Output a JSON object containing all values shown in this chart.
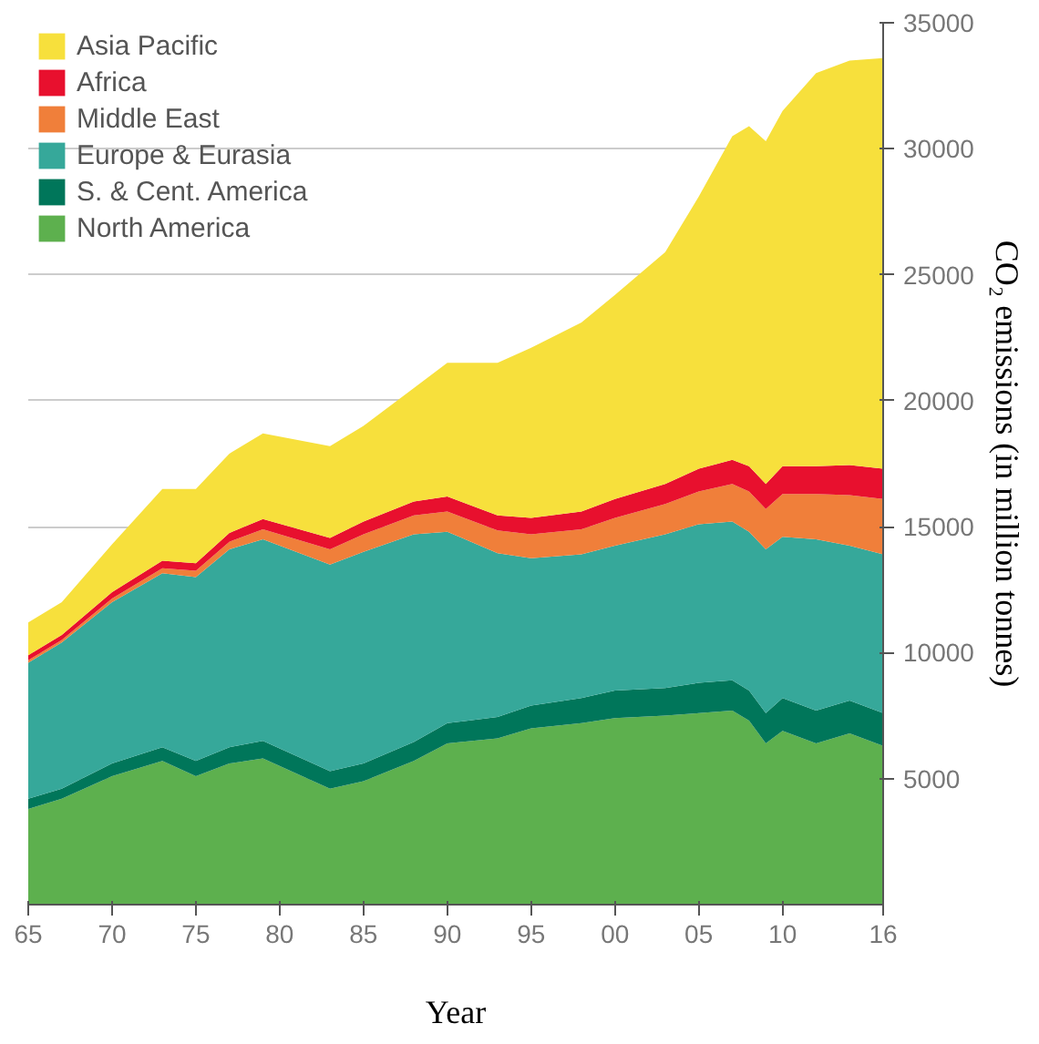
{
  "chart_data": {
    "type": "area",
    "stacked": true,
    "xlabel": "Year",
    "ylabel": "CO₂ emissions (in million tonnes)",
    "x": [
      1965,
      1967,
      1970,
      1973,
      1975,
      1977,
      1979,
      1983,
      1985,
      1988,
      1990,
      1993,
      1995,
      1998,
      2000,
      2003,
      2005,
      2007,
      2008,
      2009,
      2010,
      2012,
      2014,
      2016
    ],
    "series": [
      {
        "name": "North America",
        "color": "#5db04e",
        "values": [
          3800,
          4200,
          5100,
          5700,
          5100,
          5600,
          5800,
          4600,
          4900,
          5700,
          6400,
          6600,
          7000,
          7200,
          7400,
          7500,
          7600,
          7700,
          7300,
          6400,
          6900,
          6400,
          6800,
          6300
        ]
      },
      {
        "name": "S. & Cent. America",
        "color": "#00765a",
        "values": [
          400,
          400,
          500,
          550,
          600,
          650,
          700,
          700,
          700,
          750,
          800,
          850,
          900,
          1000,
          1100,
          1100,
          1200,
          1200,
          1200,
          1200,
          1300,
          1300,
          1300,
          1300
        ]
      },
      {
        "name": "Europe & Eurasia",
        "color": "#36a89a",
        "values": [
          5400,
          5800,
          6400,
          6900,
          7300,
          7850,
          8000,
          8200,
          8400,
          8250,
          7600,
          6500,
          5850,
          5700,
          5750,
          6100,
          6300,
          6300,
          6300,
          6500,
          6400,
          6800,
          6150,
          6300
        ]
      },
      {
        "name": "Middle East",
        "color": "#f07f3a",
        "values": [
          100,
          100,
          150,
          200,
          250,
          300,
          400,
          600,
          700,
          750,
          800,
          900,
          950,
          1000,
          1100,
          1200,
          1300,
          1500,
          1600,
          1600,
          1700,
          1800,
          2000,
          2200
        ]
      },
      {
        "name": "Africa",
        "color": "#e8102e",
        "values": [
          200,
          200,
          250,
          300,
          300,
          350,
          400,
          450,
          500,
          550,
          600,
          600,
          650,
          700,
          750,
          800,
          900,
          950,
          1000,
          1000,
          1100,
          1100,
          1200,
          1200
        ]
      },
      {
        "name": "Asia Pacific",
        "color": "#f7e03c",
        "values": [
          1300,
          1300,
          1900,
          2850,
          2950,
          3150,
          3400,
          3650,
          3800,
          4500,
          5300,
          6050,
          6750,
          7500,
          8100,
          9200,
          10800,
          12850,
          13500,
          13600,
          14100,
          15600,
          16050,
          16300
        ]
      }
    ],
    "xlim": [
      1965,
      2016
    ],
    "xticks": [
      {
        "value": 1965,
        "label": "65"
      },
      {
        "value": 1970,
        "label": "70"
      },
      {
        "value": 1975,
        "label": "75"
      },
      {
        "value": 1980,
        "label": "80"
      },
      {
        "value": 1985,
        "label": "85"
      },
      {
        "value": 1990,
        "label": "90"
      },
      {
        "value": 1995,
        "label": "95"
      },
      {
        "value": 2000,
        "label": "00"
      },
      {
        "value": 2005,
        "label": "05"
      },
      {
        "value": 2010,
        "label": "10"
      },
      {
        "value": 2016,
        "label": "16"
      }
    ],
    "ylim": [
      0,
      35000
    ],
    "yticks": [
      5000,
      10000,
      15000,
      20000,
      25000,
      30000,
      35000
    ],
    "grid": "y",
    "legend": "top left"
  }
}
